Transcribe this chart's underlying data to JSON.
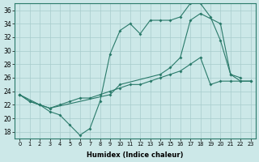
{
  "xlabel": "Humidex (Indice chaleur)",
  "line1_x": [
    0,
    1,
    2,
    3,
    4,
    5,
    6,
    7,
    8,
    9,
    10,
    11,
    12,
    13,
    14,
    15,
    16,
    17,
    18,
    19,
    20,
    21,
    22
  ],
  "line1_y": [
    23.5,
    22.5,
    22.0,
    21.0,
    20.5,
    19.0,
    17.5,
    18.5,
    22.5,
    29.5,
    33.0,
    34.0,
    32.5,
    34.5,
    34.5,
    34.5,
    35.0,
    37.0,
    37.0,
    35.0,
    31.5,
    26.5,
    26.0
  ],
  "line2_x": [
    0,
    1,
    2,
    3,
    4,
    5,
    6,
    7,
    8,
    9,
    10,
    11,
    12,
    13,
    14,
    15,
    16,
    17,
    18,
    19,
    20,
    21,
    22,
    23
  ],
  "line2_y": [
    23.5,
    22.5,
    22.0,
    21.5,
    22.0,
    22.5,
    23.0,
    23.0,
    23.5,
    24.0,
    24.5,
    25.0,
    25.0,
    25.5,
    26.0,
    26.5,
    27.0,
    28.0,
    29.0,
    25.0,
    25.5,
    25.5,
    25.5,
    25.5
  ],
  "line3_x": [
    0,
    2,
    3,
    9,
    10,
    14,
    15,
    16,
    17,
    18,
    20,
    21,
    22,
    23
  ],
  "line3_y": [
    23.5,
    22.0,
    21.5,
    23.5,
    25.0,
    26.5,
    27.5,
    29.0,
    34.5,
    35.5,
    34.0,
    26.5,
    25.5,
    25.5
  ],
  "ylim": [
    17,
    37
  ],
  "xlim": [
    -0.5,
    23.5
  ],
  "yticks": [
    18,
    20,
    22,
    24,
    26,
    28,
    30,
    32,
    34,
    36
  ],
  "xticks": [
    0,
    1,
    2,
    3,
    4,
    5,
    6,
    7,
    8,
    9,
    10,
    11,
    12,
    13,
    14,
    15,
    16,
    17,
    18,
    19,
    20,
    21,
    22,
    23
  ],
  "line_color": "#2a7a6a",
  "bg_color": "#cce8e8",
  "grid_color": "#a8cccc"
}
